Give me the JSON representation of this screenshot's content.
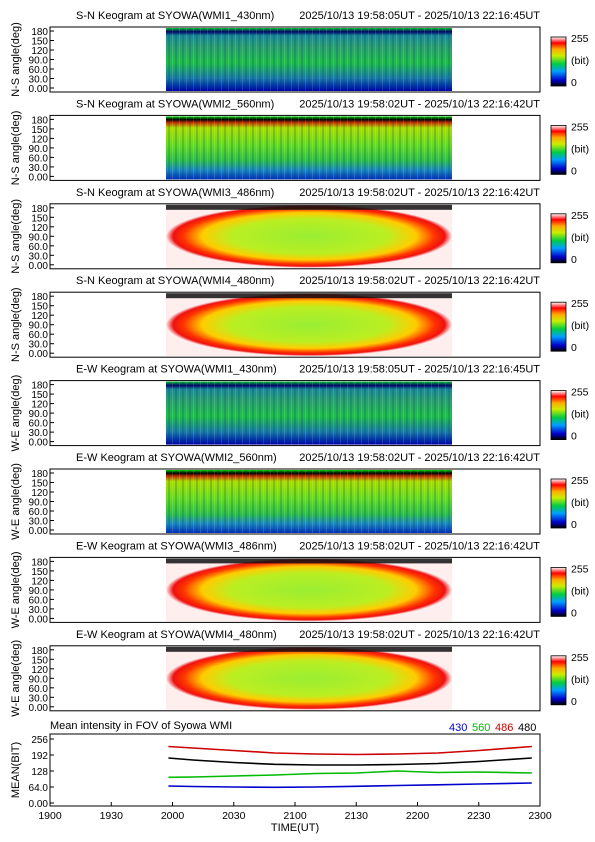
{
  "keograms": [
    {
      "title": "S-N Keogram at SYOWA(WMI1_430nm)",
      "time_range": "2025/10/13 19:58:05UT - 2025/10/13 22:16:45UT",
      "ylabel": "N-S angle(deg)",
      "ticks": [
        "180",
        "150",
        "120",
        "90.0",
        "60.0",
        "30.0",
        "0.00"
      ],
      "scheme": "aurora430"
    },
    {
      "title": "S-N Keogram at SYOWA(WMI2_560nm)",
      "time_range": "2025/10/13 19:58:02UT - 2025/10/13 22:16:42UT",
      "ylabel": "N-S angle(deg)",
      "ticks": [
        "180",
        "150",
        "120",
        "90.0",
        "60.0",
        "30.0",
        "0.00"
      ],
      "scheme": "aurora560"
    },
    {
      "title": "S-N Keogram at SYOWA(WMI3_486nm)",
      "time_range": "2025/10/13 19:58:02UT - 2025/10/13 22:16:42UT",
      "ylabel": "N-S angle(deg)",
      "ticks": [
        "180",
        "150",
        "120",
        "90.0",
        "60.0",
        "30.0",
        "0.00"
      ],
      "scheme": "ellipse"
    },
    {
      "title": "S-N Keogram at SYOWA(WMI4_480nm)",
      "time_range": "2025/10/13 19:58:02UT - 2025/10/13 22:16:42UT",
      "ylabel": "N-S angle(deg)",
      "ticks": [
        "180",
        "150",
        "120",
        "90.0",
        "60.0",
        "30.0",
        "0.00"
      ],
      "scheme": "ellipse"
    },
    {
      "title": "E-W Keogram at SYOWA(WMI1_430nm)",
      "time_range": "2025/10/13 19:58:05UT - 2025/10/13 22:16:45UT",
      "ylabel": "W-E angle(deg)",
      "ticks": [
        "180",
        "150",
        "120",
        "90.0",
        "60.0",
        "30.0",
        "0.00"
      ],
      "scheme": "aurora430"
    },
    {
      "title": "E-W Keogram at SYOWA(WMI2_560nm)",
      "time_range": "2025/10/13 19:58:02UT - 2025/10/13 22:16:42UT",
      "ylabel": "W-E angle(deg)",
      "ticks": [
        "180",
        "150",
        "120",
        "90.0",
        "60.0",
        "30.0",
        "0.00"
      ],
      "scheme": "aurora560"
    },
    {
      "title": "E-W Keogram at SYOWA(WMI3_486nm)",
      "time_range": "2025/10/13 19:58:02UT - 2025/10/13 22:16:42UT",
      "ylabel": "W-E angle(deg)",
      "ticks": [
        "180",
        "150",
        "120",
        "90.0",
        "60.0",
        "30.0",
        "0.00"
      ],
      "scheme": "ellipse"
    },
    {
      "title": "E-W Keogram at SYOWA(WMI4_480nm)",
      "time_range": "2025/10/13 19:58:02UT - 2025/10/13 22:16:42UT",
      "ylabel": "W-E angle(deg)",
      "ticks": [
        "180",
        "150",
        "120",
        "90.0",
        "60.0",
        "30.0",
        "0.00"
      ],
      "scheme": "ellipse"
    }
  ],
  "colorbar": {
    "max_label": "255",
    "unit": "(bit)",
    "min_label": "0"
  },
  "colors": {
    "ch430": "#0000cc",
    "ch560": "#00bb00",
    "ch486": "#cc0000",
    "ch480": "#000000"
  },
  "chart_data": {
    "type": "line",
    "title": "Mean intensity in FOV of Syowa WMI",
    "ylabel": "MEAN(BIT)",
    "xlabel": "TIME(UT)",
    "yticks": [
      "256",
      "192",
      "128",
      "64.0",
      "0.00"
    ],
    "ylim": [
      0,
      256
    ],
    "xticks": [
      "1900",
      "1930",
      "2000",
      "2030",
      "2100",
      "2130",
      "2200",
      "2230",
      "2300"
    ],
    "xlim_minutes": [
      1140,
      1380
    ],
    "series": [
      {
        "name": "430",
        "color": "#0000cc",
        "x_minutes": [
          1198,
          1210,
          1230,
          1250,
          1270,
          1290,
          1310,
          1330,
          1350,
          1376
        ],
        "values": [
          68,
          66,
          64,
          63,
          64,
          67,
          70,
          73,
          76,
          80
        ]
      },
      {
        "name": "560",
        "color": "#00bb00",
        "x_minutes": [
          1198,
          1210,
          1230,
          1250,
          1270,
          1290,
          1310,
          1330,
          1350,
          1376
        ],
        "values": [
          103,
          104,
          108,
          112,
          118,
          120,
          128,
          122,
          124,
          120
        ]
      },
      {
        "name": "486",
        "color": "#cc0000",
        "x_minutes": [
          1198,
          1210,
          1230,
          1250,
          1270,
          1290,
          1310,
          1330,
          1350,
          1376
        ],
        "values": [
          226,
          220,
          210,
          200,
          196,
          194,
          196,
          200,
          210,
          226
        ]
      },
      {
        "name": "480",
        "color": "#000000",
        "x_minutes": [
          1198,
          1210,
          1230,
          1250,
          1270,
          1290,
          1310,
          1330,
          1350,
          1376
        ],
        "values": [
          180,
          172,
          162,
          155,
          152,
          152,
          154,
          158,
          166,
          180
        ]
      }
    ]
  }
}
